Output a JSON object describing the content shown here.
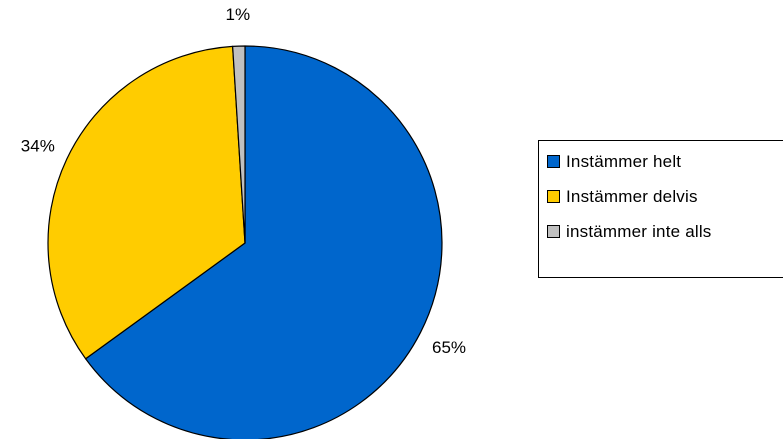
{
  "chart_data": {
    "type": "pie",
    "title": "",
    "categories": [
      "Instämmer helt",
      "Instämmer delvis",
      "instämmer inte alls"
    ],
    "values": [
      65,
      34,
      1
    ],
    "value_labels": [
      "65%",
      "34%",
      "1%"
    ],
    "colors": [
      "#0066CC",
      "#FFCC00",
      "#C0C0C0"
    ],
    "start_angle_deg": 0,
    "direction": "clockwise",
    "legend_position": "right"
  }
}
